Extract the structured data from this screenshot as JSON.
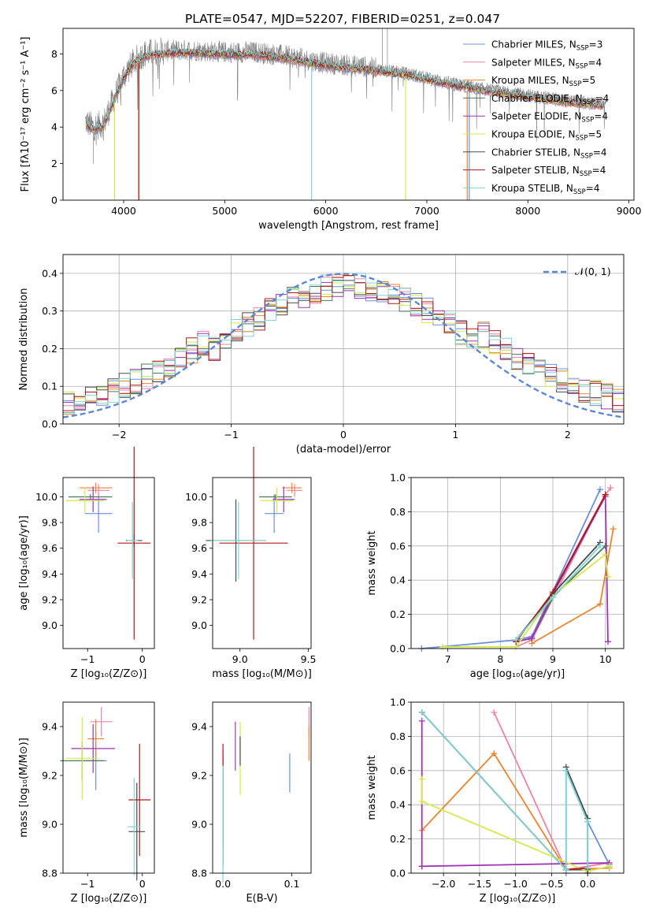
{
  "figure": {
    "title": "PLATE=0547, MJD=52207, FIBERID=0251, z=0.047"
  },
  "models": [
    {
      "name": "Chabrier MILES",
      "nssp": "3",
      "color": "#6a8fd9"
    },
    {
      "name": "Salpeter MILES",
      "nssp": "4",
      "color": "#ee82a8"
    },
    {
      "name": "Kroupa MILES",
      "nssp": "5",
      "color": "#e8852c"
    },
    {
      "name": "Chabrier ELODIE",
      "nssp": "4",
      "color": "#4e7a55"
    },
    {
      "name": "Salpeter ELODIE",
      "nssp": "4",
      "color": "#a032b4"
    },
    {
      "name": "Kroupa ELODIE",
      "nssp": "5",
      "color": "#d6e84e"
    },
    {
      "name": "Chabrier STELIB",
      "nssp": "4",
      "color": "#4a4a4a"
    },
    {
      "name": "Salpeter STELIB",
      "nssp": "4",
      "color": "#b01818"
    },
    {
      "name": "Kroupa STELIB",
      "nssp": "4",
      "color": "#7fd6d6"
    }
  ],
  "chart_data": [
    {
      "id": "spectrum",
      "type": "line",
      "xlabel": "wavelength [Angstrom, rest frame]",
      "ylabel": "Flux [fλ10⁻¹⁷ erg cm⁻² s⁻¹ A⁻¹]",
      "xlim": [
        3400,
        9050
      ],
      "ylim": [
        0,
        9.4
      ],
      "xticks": [
        4000,
        5000,
        6000,
        7000,
        8000,
        9000
      ],
      "yticks": [
        0,
        2,
        4,
        6,
        8
      ],
      "data_color": "#808080",
      "data_envelope": {
        "x": [
          3620,
          3700,
          3800,
          3900,
          4000,
          4100,
          4200,
          4300,
          4500,
          4700,
          5000,
          5300,
          5600,
          6000,
          6400,
          6800,
          7200,
          7600,
          8000,
          8400,
          8780
        ],
        "y": [
          4.3,
          4.0,
          4.2,
          5.5,
          6.8,
          7.6,
          8.0,
          8.1,
          8.2,
          8.2,
          8.1,
          8.1,
          7.9,
          7.5,
          7.3,
          7.0,
          6.5,
          6.1,
          5.8,
          5.5,
          5.3
        ]
      },
      "legend": "top-right",
      "grid": false
    },
    {
      "id": "residuals",
      "type": "line",
      "xlabel": "(data-model)/error",
      "ylabel": "Normed distribution",
      "xlim": [
        -2.5,
        2.5
      ],
      "ylim": [
        0,
        0.45
      ],
      "xticks": [
        -2,
        -1,
        0,
        1,
        2
      ],
      "yticks": [
        0.0,
        0.1,
        0.2,
        0.3,
        0.4
      ],
      "grid": true,
      "bin_width": 0.1,
      "normal_curve": {
        "label": "𝒩(0, 1)",
        "color": "#5b88d6",
        "mean": 0,
        "sigma": 1
      }
    },
    {
      "id": "age-vs-Z",
      "type": "scatter",
      "xlabel": "Z [log₁₀(Z/Z⊙)]",
      "ylabel": "age  [log₁₀(age/yr)]",
      "xlim": [
        -1.45,
        0.22
      ],
      "ylim": [
        8.82,
        10.15
      ],
      "xticks": [
        -1,
        0
      ],
      "yticks": [
        9.0,
        9.2,
        9.4,
        9.6,
        9.8,
        10.0
      ],
      "points": [
        {
          "m": 0,
          "x": -0.8,
          "xe": 0.25,
          "y": 9.87,
          "ye": 0.15
        },
        {
          "m": 1,
          "x": -0.8,
          "xe": 0.2,
          "y": 10.05,
          "ye": 0.05
        },
        {
          "m": 2,
          "x": -0.85,
          "xe": 0.3,
          "y": 10.07,
          "ye": 0.04
        },
        {
          "m": 3,
          "x": -0.95,
          "xe": 0.4,
          "y": 10.0,
          "ye": 0.02
        },
        {
          "m": 4,
          "x": -0.9,
          "xe": 0.25,
          "y": 9.98,
          "ye": 0.1
        },
        {
          "m": 5,
          "x": -1.05,
          "xe": 0.35,
          "y": 9.97,
          "ye": 0.1
        },
        {
          "m": 6,
          "x": -0.15,
          "xe": 0.15,
          "y": 9.66,
          "ye": 0.05
        },
        {
          "m": 7,
          "x": -0.15,
          "xe": 0.3,
          "y": 9.64,
          "ye": 0.75
        },
        {
          "m": 8,
          "x": -0.18,
          "xe": 0.1,
          "y": 9.66,
          "ye": 0.3
        }
      ]
    },
    {
      "id": "age-vs-mass",
      "type": "scatter",
      "xlabel": "mass [log₁₀(M/M⊙)]",
      "ylabel": "",
      "xlim": [
        8.8,
        9.52
      ],
      "ylim": [
        8.82,
        10.15
      ],
      "xticks": [
        9.0,
        9.5
      ],
      "yticks": [
        9.0,
        9.2,
        9.4,
        9.6,
        9.8,
        10.0
      ],
      "points": [
        {
          "m": 0,
          "x": 9.25,
          "xe": 0.07,
          "y": 9.87,
          "ye": 0.15
        },
        {
          "m": 1,
          "x": 9.4,
          "xe": 0.06,
          "y": 10.05,
          "ye": 0.05
        },
        {
          "m": 2,
          "x": 9.38,
          "xe": 0.07,
          "y": 10.07,
          "ye": 0.04
        },
        {
          "m": 3,
          "x": 9.26,
          "xe": 0.12,
          "y": 10.0,
          "ye": 0.02
        },
        {
          "m": 4,
          "x": 9.32,
          "xe": 0.08,
          "y": 9.98,
          "ye": 0.1
        },
        {
          "m": 5,
          "x": 9.27,
          "xe": 0.12,
          "y": 9.97,
          "ye": 0.1
        },
        {
          "m": 6,
          "x": 8.97,
          "xe": 0.22,
          "y": 9.66,
          "ye": 0.32
        },
        {
          "m": 7,
          "x": 9.1,
          "xe": 0.25,
          "y": 9.64,
          "ye": 0.75
        },
        {
          "m": 8,
          "x": 8.99,
          "xe": 0.2,
          "y": 9.66,
          "ye": 0.3
        }
      ]
    },
    {
      "id": "massweight-vs-age",
      "type": "line",
      "xlabel": "age  [log₁₀(age/yr)]",
      "ylabel": "mass weight",
      "xlim": [
        6.3,
        10.35
      ],
      "ylim": [
        0,
        1.0
      ],
      "xticks": [
        7,
        8,
        9,
        10
      ],
      "yticks": [
        0.0,
        0.2,
        0.4,
        0.6,
        0.8,
        1.0
      ],
      "grid": true,
      "series": [
        {
          "m": 0,
          "x": [
            6.5,
            8.3,
            8.6,
            9.9
          ],
          "y": [
            0.0,
            0.05,
            0.07,
            0.93
          ]
        },
        {
          "m": 1,
          "x": [
            8.3,
            8.6,
            10.0,
            10.1
          ],
          "y": [
            0.01,
            0.05,
            0.9,
            0.94
          ]
        },
        {
          "m": 2,
          "x": [
            8.6,
            9.9,
            10.15
          ],
          "y": [
            0.03,
            0.26,
            0.7
          ]
        },
        {
          "m": 3,
          "x": [
            8.3,
            8.6,
            9.0,
            10.0
          ],
          "y": [
            0.04,
            0.06,
            0.3,
            0.6
          ]
        },
        {
          "m": 4,
          "x": [
            8.3,
            8.6,
            9.0,
            10.0,
            10.05
          ],
          "y": [
            0.04,
            0.06,
            0.32,
            0.89,
            0.04
          ]
        },
        {
          "m": 5,
          "x": [
            6.9,
            8.3,
            9.0,
            10.0,
            10.05
          ],
          "y": [
            0.01,
            0.01,
            0.31,
            0.55,
            0.42
          ]
        },
        {
          "m": 6,
          "x": [
            8.3,
            9.0,
            9.9
          ],
          "y": [
            0.05,
            0.32,
            0.62
          ]
        },
        {
          "m": 7,
          "x": [
            8.3,
            9.0,
            10.0
          ],
          "y": [
            0.04,
            0.33,
            0.9
          ]
        },
        {
          "m": 8,
          "x": [
            8.3,
            9.0,
            9.9
          ],
          "y": [
            0.05,
            0.3,
            0.6
          ]
        }
      ]
    },
    {
      "id": "mass-vs-Z",
      "type": "scatter",
      "xlabel": "Z [log₁₀(Z/Z⊙)]",
      "ylabel": "mass [log₁₀(M/M⊙)]",
      "xlim": [
        -1.45,
        0.22
      ],
      "ylim": [
        8.8,
        9.5
      ],
      "xticks": [
        -1,
        0
      ],
      "yticks": [
        8.8,
        9.0,
        9.2,
        9.4
      ],
      "points": [
        {
          "m": 0,
          "x": -0.85,
          "xe": 0.2,
          "y": 9.26,
          "ye": 0.12
        },
        {
          "m": 1,
          "x": -0.75,
          "xe": 0.2,
          "y": 9.42,
          "ye": 0.06
        },
        {
          "m": 2,
          "x": -0.85,
          "xe": 0.15,
          "y": 9.35,
          "ye": 0.08
        },
        {
          "m": 3,
          "x": -1.1,
          "xe": 0.4,
          "y": 9.26,
          "ye": 0.08
        },
        {
          "m": 4,
          "x": -0.9,
          "xe": 0.4,
          "y": 9.31,
          "ye": 0.1
        },
        {
          "m": 5,
          "x": -1.1,
          "xe": 0.3,
          "y": 9.27,
          "ye": 0.17
        },
        {
          "m": 6,
          "x": -0.1,
          "xe": 0.15,
          "y": 8.97,
          "ye": 0.2
        },
        {
          "m": 7,
          "x": -0.05,
          "xe": 0.2,
          "y": 9.1,
          "ye": 0.23
        },
        {
          "m": 8,
          "x": -0.15,
          "xe": 0.12,
          "y": 8.99,
          "ye": 0.2
        }
      ]
    },
    {
      "id": "mass-vs-ebv",
      "type": "scatter",
      "xlabel": "E(B-V)",
      "ylabel": "",
      "xlim": [
        -0.015,
        0.128
      ],
      "ylim": [
        8.8,
        9.5
      ],
      "xticks": [
        0.0,
        0.1
      ],
      "yticks": [
        8.8,
        9.0,
        9.2,
        9.4
      ],
      "points": [
        {
          "m": 0,
          "x": 0.097,
          "y": 9.21,
          "ye": 0.08
        },
        {
          "m": 1,
          "x": 0.125,
          "y": 9.42,
          "ye": 0.06
        },
        {
          "m": 2,
          "x": 0.125,
          "y": 9.33,
          "ye": 0.07
        },
        {
          "m": 3,
          "x": 0.0,
          "y": 9.1,
          "ye": 0.2
        },
        {
          "m": 4,
          "x": 0.018,
          "y": 9.32,
          "ye": 0.1
        },
        {
          "m": 5,
          "x": 0.025,
          "y": 9.27,
          "ye": 0.15
        },
        {
          "m": 6,
          "x": 0.025,
          "y": 9.3,
          "ye": 0.06
        },
        {
          "m": 7,
          "x": 0.0,
          "y": 9.08,
          "ye": 0.25
        },
        {
          "m": 8,
          "x": 0.0,
          "y": 9.0,
          "ye": 0.24
        }
      ]
    },
    {
      "id": "massweight-vs-Z",
      "type": "line",
      "xlabel": "Z [log₁₀(Z/Z⊙)]",
      "ylabel": "mass weight",
      "xlim": [
        -2.45,
        0.5
      ],
      "ylim": [
        0,
        1.0
      ],
      "xticks": [
        -2.0,
        -1.5,
        -1.0,
        -0.5,
        0.0
      ],
      "yticks": [
        0.0,
        0.2,
        0.4,
        0.6,
        0.8,
        1.0
      ],
      "grid": true,
      "series": [
        {
          "m": 0,
          "x": [
            -0.3,
            -0.3,
            0.0,
            0.3
          ],
          "y": [
            0.0,
            0.6,
            0.3,
            0.05
          ]
        },
        {
          "m": 1,
          "x": [
            -1.3,
            -0.3,
            0.3
          ],
          "y": [
            0.94,
            0.02,
            0.06
          ]
        },
        {
          "m": 2,
          "x": [
            -2.3,
            -1.3,
            -0.3,
            0.3
          ],
          "y": [
            0.25,
            0.7,
            0.02,
            0.03
          ]
        },
        {
          "m": 3,
          "x": [
            -2.3,
            -0.3,
            0.0
          ],
          "y": [
            0.94,
            0.02,
            0.02
          ]
        },
        {
          "m": 4,
          "x": [
            -2.3,
            -2.3,
            -2.3,
            0.3
          ],
          "y": [
            0.04,
            0.89,
            0.04,
            0.06
          ]
        },
        {
          "m": 5,
          "x": [
            -2.3,
            -2.3,
            0.0,
            0.3
          ],
          "y": [
            0.55,
            0.42,
            0.01,
            0.04
          ]
        },
        {
          "m": 6,
          "x": [
            -0.3,
            0.0,
            0.0
          ],
          "y": [
            0.62,
            0.32,
            0.0
          ]
        },
        {
          "m": 7,
          "x": [
            -2.3,
            -0.3,
            0.0
          ],
          "y": [
            0.94,
            0.02,
            0.03
          ]
        },
        {
          "m": 8,
          "x": [
            -2.3,
            -0.3,
            -0.3,
            0.0,
            0.0
          ],
          "y": [
            0.94,
            0.02,
            0.6,
            0.3,
            0.03
          ]
        }
      ]
    }
  ]
}
